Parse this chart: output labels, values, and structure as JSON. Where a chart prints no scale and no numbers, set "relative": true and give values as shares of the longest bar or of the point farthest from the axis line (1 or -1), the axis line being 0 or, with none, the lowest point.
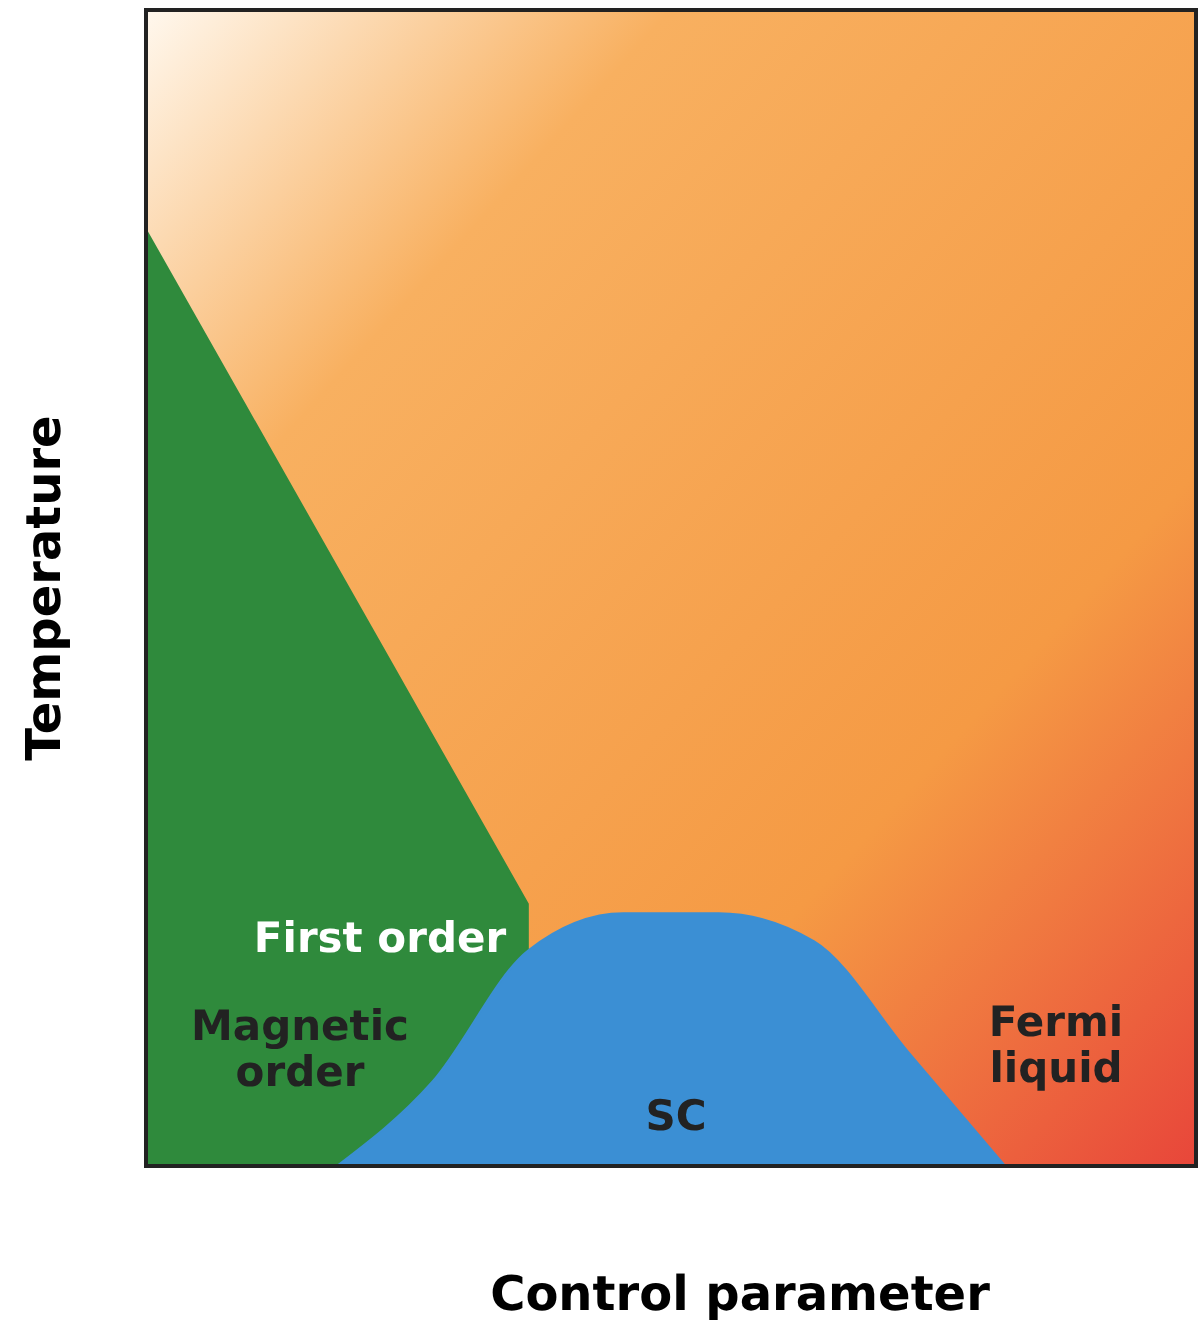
{
  "chart_data": {
    "type": "area",
    "relative": true,
    "xlabel": "Control parameter",
    "ylabel": "Temperature",
    "categories": [
      null,
      null,
      null,
      null,
      null,
      null,
      null,
      null,
      null,
      null,
      null,
      null
    ],
    "series": [
      {
        "name": "Magnetic order",
        "color": "#2f8a3c",
        "values": [
          1,
          0.82,
          0.64,
          0.46,
          0.28,
          null,
          null,
          null,
          null,
          null,
          null,
          null
        ]
      },
      {
        "name": "SC",
        "color": "#3b8fd4",
        "values": [
          null,
          null,
          0,
          0.09,
          0.23,
          0.27,
          0.27,
          0.24,
          0.12,
          0,
          null,
          null
        ]
      }
    ],
    "annotations": [
      "First order",
      "Fermi liquid"
    ]
  }
}
